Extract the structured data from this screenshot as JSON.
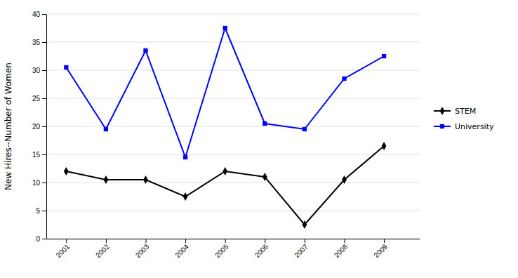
{
  "chart_data": {
    "type": "line",
    "y_label": "New Hires--Number of Women",
    "x": [
      2001,
      2002,
      2003,
      2004,
      2005,
      2006,
      2007,
      2008,
      2009
    ],
    "series": [
      {
        "name": "STEM",
        "color": "#000000",
        "marker": "diamond",
        "values": [
          12,
          10.5,
          10.5,
          7.5,
          12,
          11,
          2.5,
          10.5,
          16.5
        ]
      },
      {
        "name": "University",
        "color": "#0000ff",
        "marker": "square",
        "values": [
          30.5,
          19.5,
          33.5,
          14.5,
          37.5,
          20.5,
          19.5,
          28.5,
          32.5
        ]
      }
    ],
    "xlim": [
      2000.5,
      2009.9
    ],
    "xticks": [
      2001,
      2002,
      2003,
      2004,
      2005,
      2006,
      2007,
      2008,
      2009
    ],
    "ylim": [
      0,
      40
    ],
    "yticks": [
      0,
      5,
      10,
      15,
      20,
      25,
      30,
      35,
      40
    ],
    "grid": true,
    "legend": "right"
  }
}
